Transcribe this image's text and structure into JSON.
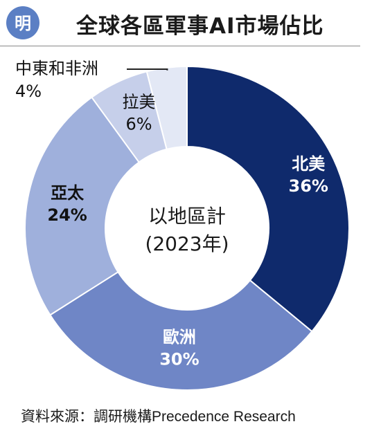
{
  "header": {
    "logo_text": "明",
    "title": "全球各區軍事AI市場佔比"
  },
  "chart_data": {
    "type": "pie",
    "donut": true,
    "center_text": [
      "以地區計",
      "(2023年)"
    ],
    "categories": [
      "北美",
      "歐洲",
      "亞太",
      "拉美",
      "中東和非洲"
    ],
    "values": [
      36,
      30,
      24,
      6,
      4
    ],
    "value_labels": [
      "36%",
      "30%",
      "24%",
      "6%",
      "4%"
    ],
    "colors": [
      "#0f2a6c",
      "#6f86c6",
      "#9fb0dc",
      "#c6cfea",
      "#e3e8f5"
    ],
    "label_colors": [
      "#ffffff",
      "#ffffff",
      "#111111",
      "#111111",
      "#111111"
    ]
  },
  "footer": {
    "source": "資料來源：調研機構Precedence Research"
  }
}
